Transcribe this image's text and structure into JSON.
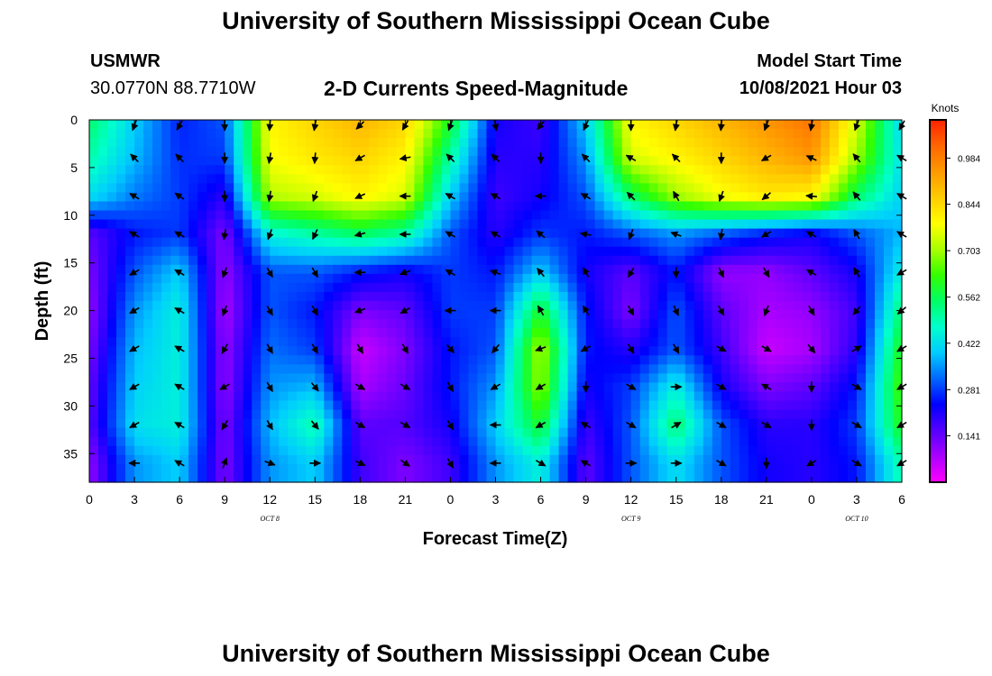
{
  "header": {
    "title": "University of Southern Mississippi Ocean Cube",
    "station": "USMWR",
    "coords": "30.0770N  88.7710W",
    "subtitle": "2-D Currents Speed-Magnitude",
    "model_label": "Model Start Time",
    "model_time": "10/08/2021 Hour 03"
  },
  "footer": {
    "title": "University of Southern Mississippi Ocean Cube"
  },
  "colors": {
    "palette": [
      "#ff00ff",
      "#aa00ff",
      "#5500ff",
      "#0000ff",
      "#0066ff",
      "#00ccff",
      "#00ffcc",
      "#00ff66",
      "#33ff00",
      "#aaff00",
      "#ffff00",
      "#ffcc00",
      "#ff9900",
      "#ff6600",
      "#ff2200"
    ]
  },
  "chart_data": {
    "type": "heatmap",
    "xlabel": "Forecast Time(Z)",
    "ylabel": "Depth (ft)",
    "x_ticks": [
      "0",
      "3",
      "6",
      "9",
      "12",
      "15",
      "18",
      "21",
      "0",
      "3",
      "6",
      "9",
      "12",
      "15",
      "18",
      "21",
      "0",
      "3",
      "6"
    ],
    "x_range_hours": [
      0,
      54
    ],
    "date_labels": [
      {
        "label": "OCT 8",
        "hour": 12
      },
      {
        "label": "OCT 9",
        "hour": 36
      },
      {
        "label": "OCT 10",
        "hour": 51
      }
    ],
    "y_ticks": [
      "0",
      "5",
      "10",
      "15",
      "20",
      "25",
      "30",
      "35"
    ],
    "y_range_ft": [
      0,
      38
    ],
    "colorbar": {
      "unit": "Knots",
      "ticks": [
        "0.984",
        "0.844",
        "0.703",
        "0.562",
        "0.422",
        "0.281",
        "0.141"
      ],
      "tick_values": [
        0.984,
        0.844,
        0.703,
        0.562,
        0.422,
        0.281,
        0.141
      ],
      "range": [
        0.0,
        1.1
      ]
    },
    "depths_ft": [
      0,
      4,
      8,
      12,
      16,
      20,
      24,
      28,
      32,
      36
    ],
    "hours": [
      0,
      3,
      6,
      9,
      12,
      15,
      18,
      21,
      24,
      27,
      30,
      33,
      36,
      39,
      42,
      45,
      48,
      51,
      54
    ],
    "speed_knots": [
      [
        0.55,
        0.4,
        0.26,
        0.3,
        0.8,
        0.85,
        0.9,
        0.85,
        0.6,
        0.22,
        0.18,
        0.4,
        0.8,
        0.85,
        0.9,
        0.95,
        1.0,
        0.75,
        0.4
      ],
      [
        0.5,
        0.38,
        0.27,
        0.28,
        0.78,
        0.82,
        0.85,
        0.8,
        0.5,
        0.2,
        0.2,
        0.35,
        0.75,
        0.8,
        0.85,
        0.9,
        0.95,
        0.7,
        0.42
      ],
      [
        0.42,
        0.33,
        0.28,
        0.2,
        0.72,
        0.75,
        0.8,
        0.75,
        0.4,
        0.18,
        0.22,
        0.3,
        0.55,
        0.7,
        0.78,
        0.82,
        0.8,
        0.55,
        0.4
      ],
      [
        0.15,
        0.25,
        0.28,
        0.12,
        0.45,
        0.5,
        0.55,
        0.5,
        0.3,
        0.2,
        0.28,
        0.25,
        0.3,
        0.35,
        0.3,
        0.25,
        0.22,
        0.3,
        0.38
      ],
      [
        0.12,
        0.3,
        0.4,
        0.1,
        0.3,
        0.3,
        0.25,
        0.22,
        0.28,
        0.25,
        0.4,
        0.22,
        0.15,
        0.25,
        0.1,
        0.1,
        0.15,
        0.22,
        0.45
      ],
      [
        0.1,
        0.35,
        0.45,
        0.08,
        0.3,
        0.25,
        0.12,
        0.15,
        0.28,
        0.28,
        0.6,
        0.25,
        0.12,
        0.3,
        0.15,
        0.08,
        0.1,
        0.18,
        0.55
      ],
      [
        0.12,
        0.38,
        0.45,
        0.1,
        0.32,
        0.28,
        0.05,
        0.12,
        0.25,
        0.3,
        0.72,
        0.25,
        0.2,
        0.3,
        0.18,
        0.05,
        0.08,
        0.2,
        0.62
      ],
      [
        0.14,
        0.4,
        0.45,
        0.1,
        0.35,
        0.38,
        0.08,
        0.14,
        0.25,
        0.35,
        0.7,
        0.22,
        0.28,
        0.45,
        0.22,
        0.12,
        0.15,
        0.25,
        0.65
      ],
      [
        0.15,
        0.42,
        0.45,
        0.12,
        0.38,
        0.5,
        0.15,
        0.16,
        0.22,
        0.4,
        0.6,
        0.18,
        0.3,
        0.55,
        0.3,
        0.2,
        0.2,
        0.28,
        0.62
      ],
      [
        0.1,
        0.35,
        0.4,
        0.12,
        0.35,
        0.4,
        0.18,
        0.12,
        0.18,
        0.35,
        0.45,
        0.15,
        0.3,
        0.42,
        0.3,
        0.22,
        0.2,
        0.25,
        0.5
      ]
    ],
    "vector_grid": {
      "hours": [
        3,
        6,
        9,
        12,
        15,
        18,
        21,
        24,
        27,
        30,
        33,
        36,
        39,
        42,
        45,
        48,
        51,
        54
      ],
      "depths_ft": [
        0,
        4,
        8,
        12,
        16,
        20,
        24,
        28,
        32,
        36
      ],
      "direction_deg": [
        [
          200,
          210,
          180,
          185,
          190,
          225,
          210,
          200,
          170,
          220,
          205,
          180,
          190,
          185,
          200,
          190,
          200,
          210
        ],
        [
          315,
          315,
          180,
          190,
          185,
          240,
          260,
          315,
          315,
          180,
          315,
          300,
          315,
          180,
          240,
          295,
          320,
          300
        ],
        [
          300,
          305,
          180,
          190,
          200,
          245,
          270,
          300,
          300,
          270,
          300,
          315,
          330,
          200,
          230,
          275,
          320,
          300
        ],
        [
          300,
          300,
          190,
          200,
          205,
          255,
          270,
          300,
          300,
          310,
          280,
          200,
          290,
          190,
          240,
          300,
          330,
          300
        ],
        [
          240,
          300,
          200,
          150,
          150,
          270,
          250,
          300,
          290,
          320,
          330,
          210,
          180,
          155,
          150,
          300,
          330,
          240
        ],
        [
          240,
          300,
          200,
          150,
          150,
          250,
          240,
          270,
          270,
          330,
          330,
          150,
          155,
          150,
          200,
          150,
          220,
          230
        ],
        [
          240,
          300,
          210,
          150,
          150,
          150,
          150,
          140,
          220,
          250,
          240,
          150,
          150,
          120,
          120,
          140,
          60,
          240
        ],
        [
          240,
          300,
          240,
          150,
          140,
          120,
          120,
          150,
          240,
          240,
          180,
          120,
          90,
          120,
          300,
          180,
          120,
          240
        ],
        [
          240,
          300,
          210,
          150,
          140,
          120,
          120,
          150,
          270,
          240,
          300,
          120,
          60,
          120,
          120,
          180,
          120,
          240
        ],
        [
          270,
          300,
          20,
          110,
          90,
          115,
          125,
          150,
          270,
          120,
          300,
          90,
          90,
          120,
          180,
          240,
          120,
          240
        ]
      ]
    }
  }
}
